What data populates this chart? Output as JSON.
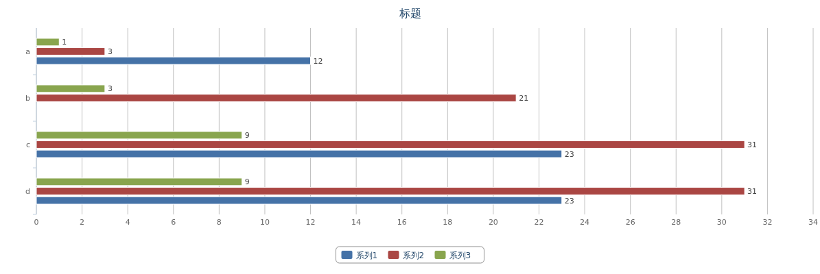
{
  "chart_data": {
    "type": "bar",
    "orientation": "horizontal",
    "title": "标题",
    "categories": [
      "a",
      "b",
      "c",
      "d"
    ],
    "series": [
      {
        "name": "系列1",
        "color": "#4572a7",
        "values": [
          12,
          null,
          23,
          23
        ]
      },
      {
        "name": "系列2",
        "color": "#aa4643",
        "values": [
          3,
          21,
          31,
          31
        ]
      },
      {
        "name": "系列3",
        "color": "#89a54e",
        "values": [
          1,
          3,
          9,
          9
        ]
      }
    ],
    "xlim": [
      0,
      34
    ],
    "xticks": [
      0,
      2,
      4,
      6,
      8,
      10,
      12,
      14,
      16,
      18,
      20,
      22,
      24,
      26,
      28,
      30,
      32,
      34
    ],
    "grid": "x",
    "legend": "bottom",
    "data_labels": true
  }
}
